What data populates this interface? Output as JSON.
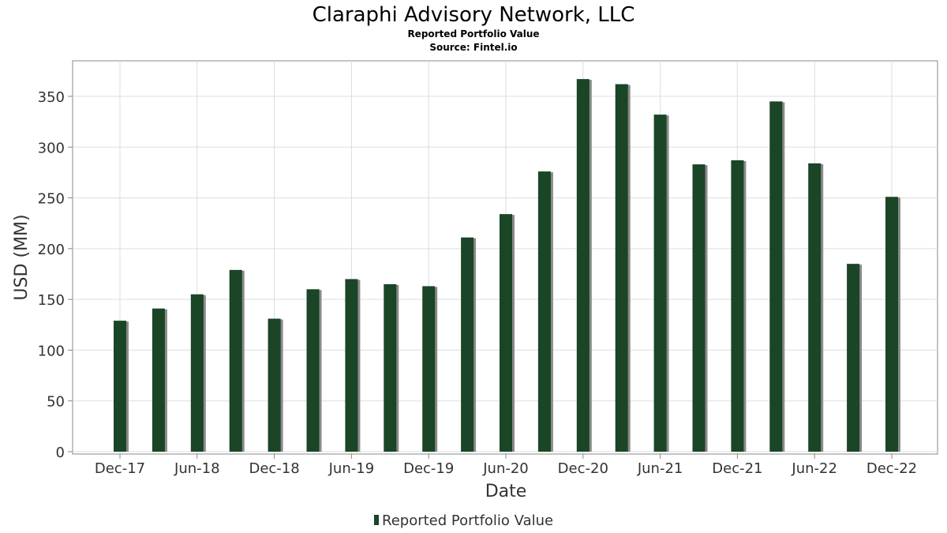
{
  "chart_data": {
    "type": "bar",
    "title": "Claraphi Advisory Network, LLC",
    "subtitle": "Reported Portfolio Value",
    "source": "Source: Fintel.io",
    "xlabel": "Date",
    "ylabel": "USD (MM)",
    "ylim": [
      0,
      385
    ],
    "yticks": [
      0,
      50,
      100,
      150,
      200,
      250,
      300,
      350
    ],
    "x_tick_labels": [
      "Dec-17",
      "Jun-18",
      "Dec-18",
      "Jun-19",
      "Dec-19",
      "Jun-20",
      "Dec-20",
      "Jun-21",
      "Dec-21",
      "Jun-22",
      "Dec-22"
    ],
    "categories": [
      "Dec-17",
      "Mar-18",
      "Jun-18",
      "Sep-18",
      "Dec-18",
      "Mar-19",
      "Jun-19",
      "Sep-19",
      "Dec-19",
      "Mar-20",
      "Jun-20",
      "Sep-20",
      "Dec-20",
      "Mar-21",
      "Jun-21",
      "Sep-21",
      "Dec-21",
      "Mar-22",
      "Jun-22",
      "Sep-22",
      "Dec-22"
    ],
    "series": [
      {
        "name": "Reported Portfolio Value",
        "color": "#1a4526",
        "values": [
          129,
          141,
          155,
          179,
          131,
          160,
          170,
          165,
          163,
          211,
          234,
          276,
          367,
          362,
          332,
          283,
          287,
          345,
          284,
          185,
          251
        ]
      }
    ],
    "grid": true,
    "legend_position": "bottom-center"
  }
}
